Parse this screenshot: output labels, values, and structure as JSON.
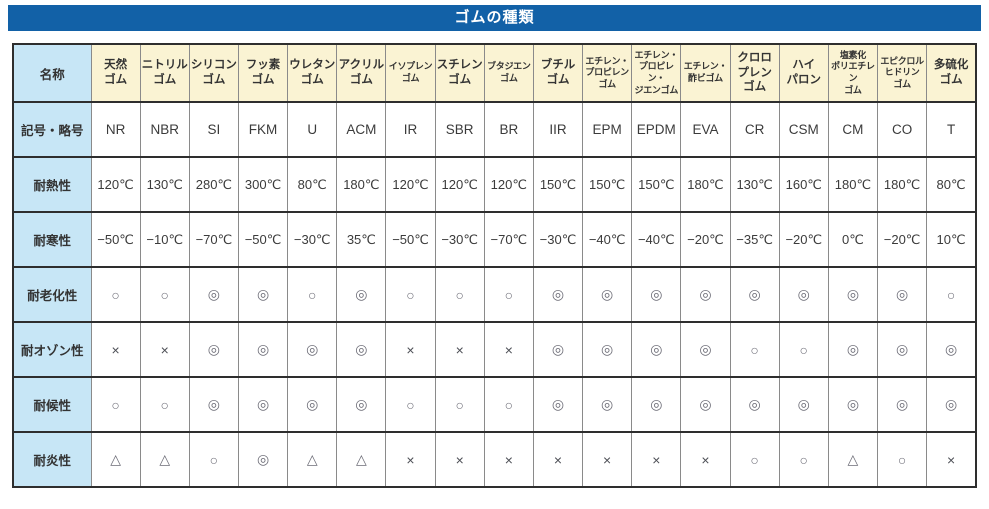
{
  "title": "ゴムの種類",
  "colors": {
    "title_bg": "#1261a7",
    "title_text": "#ffffff",
    "label_cell_bg": "#c7e6f6",
    "header_cell_bg": "#faf3d3",
    "row_border": "#2e2e2e",
    "col_border": "#8a8a8a"
  },
  "table": {
    "corner_label": "名称",
    "columns": [
      "天然\nゴム",
      "ニトリル\nゴム",
      "シリコン\nゴム",
      "フッ素\nゴム",
      "ウレタン\nゴム",
      "アクリル\nゴム",
      "イソプレン\nゴム",
      "スチレン\nゴム",
      "ブタジエン\nゴム",
      "ブチル\nゴム",
      "エチレン・\nプロピレン\nゴム",
      "エチレン・\nプロピレン・\nジエンゴム",
      "エチレン・\n酢ビゴム",
      "クロロ\nプレン\nゴム",
      "ハイ\nパロン",
      "塩素化\nポリエチレン\nゴム",
      "エピクロル\nヒドリン\nゴム",
      "多硫化\nゴム"
    ],
    "rows": [
      {
        "label": "記号・略号",
        "kind": "abbr",
        "values": [
          "NR",
          "NBR",
          "SI",
          "FKM",
          "U",
          "ACM",
          "IR",
          "SBR",
          "BR",
          "IIR",
          "EPM",
          "EPDM",
          "EVA",
          "CR",
          "CSM",
          "CM",
          "CO",
          "T"
        ]
      },
      {
        "label": "耐熱性",
        "kind": "temp",
        "values": [
          "120℃",
          "130℃",
          "280℃",
          "300℃",
          "80℃",
          "180℃",
          "120℃",
          "120℃",
          "120℃",
          "150℃",
          "150℃",
          "150℃",
          "180℃",
          "130℃",
          "160℃",
          "180℃",
          "180℃",
          "80℃"
        ]
      },
      {
        "label": "耐寒性",
        "kind": "temp",
        "values": [
          "−50℃",
          "−10℃",
          "−70℃",
          "−50℃",
          "−30℃",
          "35℃",
          "−50℃",
          "−30℃",
          "−70℃",
          "−30℃",
          "−40℃",
          "−40℃",
          "−20℃",
          "−35℃",
          "−20℃",
          "0℃",
          "−20℃",
          "10℃"
        ]
      },
      {
        "label": "耐老化性",
        "kind": "symbol",
        "values": [
          "○",
          "○",
          "◎",
          "◎",
          "○",
          "◎",
          "○",
          "○",
          "○",
          "◎",
          "◎",
          "◎",
          "◎",
          "◎",
          "◎",
          "◎",
          "◎",
          "○"
        ]
      },
      {
        "label": "耐オゾン性",
        "kind": "symbol",
        "values": [
          "×",
          "×",
          "◎",
          "◎",
          "◎",
          "◎",
          "×",
          "×",
          "×",
          "◎",
          "◎",
          "◎",
          "◎",
          "○",
          "○",
          "◎",
          "◎",
          "◎"
        ]
      },
      {
        "label": "耐候性",
        "kind": "symbol",
        "values": [
          "○",
          "○",
          "◎",
          "◎",
          "◎",
          "◎",
          "○",
          "○",
          "○",
          "◎",
          "◎",
          "◎",
          "◎",
          "◎",
          "◎",
          "◎",
          "◎",
          "◎"
        ]
      },
      {
        "label": "耐炎性",
        "kind": "symbol",
        "values": [
          "△",
          "△",
          "○",
          "◎",
          "△",
          "△",
          "×",
          "×",
          "×",
          "×",
          "×",
          "×",
          "×",
          "○",
          "○",
          "△",
          "○",
          "×"
        ]
      }
    ]
  }
}
